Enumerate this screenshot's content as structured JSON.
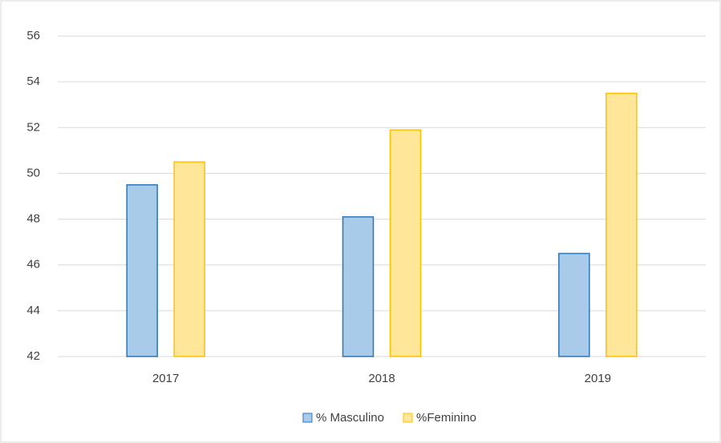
{
  "chart_data": {
    "type": "bar",
    "categories": [
      "2017",
      "2018",
      "2019"
    ],
    "series": [
      {
        "name": "% Masculino",
        "color": "#a9cbea",
        "edgecolor": "#2e75b6",
        "values": [
          49.5,
          48.1,
          46.5
        ]
      },
      {
        "name": "%Feminino",
        "color": "#ffe699",
        "edgecolor": "#ffc000",
        "values": [
          50.5,
          51.9,
          53.5
        ]
      }
    ],
    "ylim": [
      42,
      56
    ],
    "yticks": [
      42,
      44,
      46,
      48,
      50,
      52,
      54,
      56
    ],
    "grid": true,
    "legend": "bottom"
  }
}
